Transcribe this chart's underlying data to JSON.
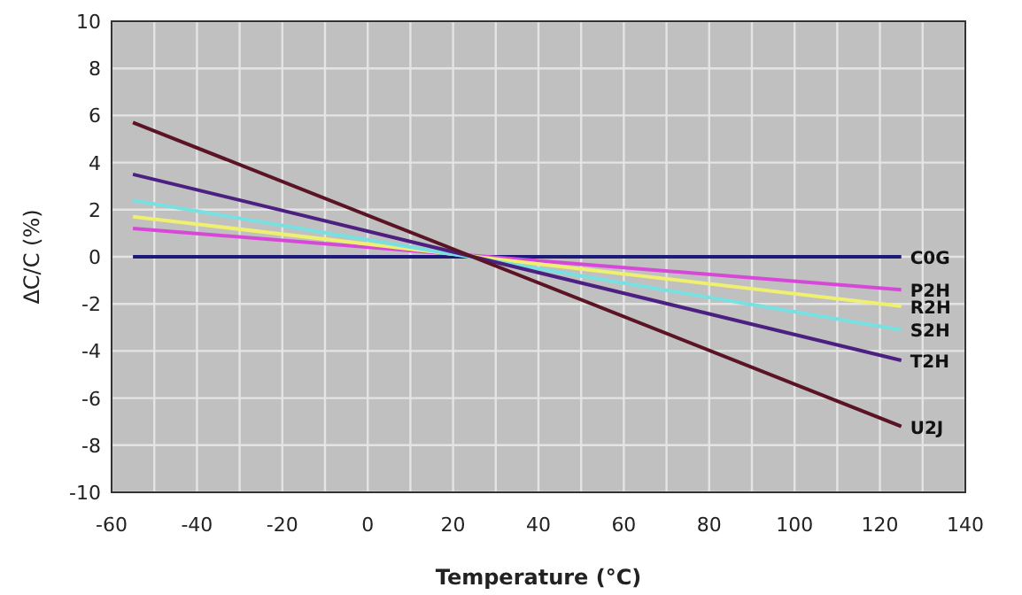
{
  "chart_data": {
    "type": "line",
    "xlabel": "Temperature (°C)",
    "ylabel": "ΔC/C (%)",
    "x": [
      -55,
      125
    ],
    "series": [
      {
        "name": "C0G",
        "color": "#1c1c78",
        "values": [
          0,
          0
        ]
      },
      {
        "name": "P2H",
        "color": "#d848d8",
        "values": [
          1.2,
          -1.4
        ]
      },
      {
        "name": "R2H",
        "color": "#f0f070",
        "values": [
          1.7,
          -2.1
        ]
      },
      {
        "name": "S2H",
        "color": "#78e0e0",
        "values": [
          2.4,
          -3.1
        ]
      },
      {
        "name": "T2H",
        "color": "#4c2080",
        "values": [
          3.5,
          -4.4
        ]
      },
      {
        "name": "U2J",
        "color": "#5a1424",
        "values": [
          5.7,
          -7.2
        ]
      }
    ],
    "xlim": [
      -60,
      140
    ],
    "ylim": [
      -10,
      10
    ],
    "xticks": [
      -60,
      {
        "value": -50,
        "label": null
      },
      -40,
      {
        "value": -30,
        "label": null
      },
      -20,
      {
        "value": -10,
        "label": null
      },
      0,
      {
        "value": 10,
        "label": null
      },
      20,
      {
        "value": 30,
        "label": null
      },
      40,
      {
        "value": 50,
        "label": null
      },
      60,
      {
        "value": 70,
        "label": null
      },
      80,
      {
        "value": 90,
        "label": null
      },
      100,
      {
        "value": 110,
        "label": null
      },
      120,
      {
        "value": 130,
        "label": null
      },
      140
    ],
    "yticks": [
      -10,
      -8,
      -6,
      -4,
      -2,
      0,
      2,
      4,
      6,
      8,
      10
    ],
    "grid": true,
    "marker": "none",
    "line_style": "solid"
  }
}
